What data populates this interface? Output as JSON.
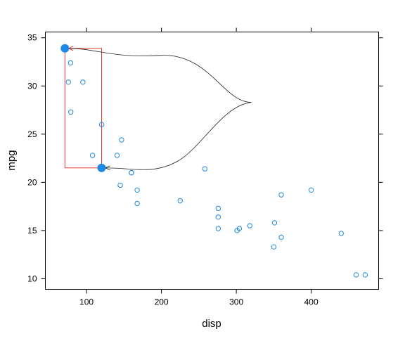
{
  "chart_data": {
    "type": "scatter",
    "title": "",
    "xlabel": "disp",
    "ylabel": "mpg",
    "xlim": [
      45,
      490
    ],
    "ylim": [
      8.9,
      35.6
    ],
    "x_ticks": [
      100,
      200,
      300,
      400
    ],
    "y_ticks": [
      10,
      15,
      20,
      25,
      30,
      35
    ],
    "grid": false,
    "point_color": "#1e88e5",
    "annotation_color": "#e53935",
    "points": [
      {
        "x": 71.1,
        "y": 33.9
      },
      {
        "x": 75.7,
        "y": 30.4
      },
      {
        "x": 78.7,
        "y": 32.4
      },
      {
        "x": 79.0,
        "y": 27.3
      },
      {
        "x": 95.1,
        "y": 30.4
      },
      {
        "x": 108.0,
        "y": 22.8
      },
      {
        "x": 120.1,
        "y": 21.5
      },
      {
        "x": 120.3,
        "y": 26.0
      },
      {
        "x": 140.8,
        "y": 22.8
      },
      {
        "x": 145.0,
        "y": 19.7
      },
      {
        "x": 146.7,
        "y": 24.4
      },
      {
        "x": 160.0,
        "y": 21.0
      },
      {
        "x": 160.0,
        "y": 21.0
      },
      {
        "x": 167.6,
        "y": 19.2
      },
      {
        "x": 167.6,
        "y": 17.8
      },
      {
        "x": 225.0,
        "y": 18.1
      },
      {
        "x": 258.0,
        "y": 21.4
      },
      {
        "x": 275.8,
        "y": 16.4
      },
      {
        "x": 275.8,
        "y": 17.3
      },
      {
        "x": 275.8,
        "y": 15.2
      },
      {
        "x": 301.0,
        "y": 15.0
      },
      {
        "x": 304.0,
        "y": 15.2
      },
      {
        "x": 318.0,
        "y": 15.5
      },
      {
        "x": 350.0,
        "y": 13.3
      },
      {
        "x": 351.0,
        "y": 15.8
      },
      {
        "x": 360.0,
        "y": 18.7
      },
      {
        "x": 360.0,
        "y": 14.3
      },
      {
        "x": 400.0,
        "y": 19.2
      },
      {
        "x": 440.0,
        "y": 14.7
      },
      {
        "x": 460.0,
        "y": 10.4
      },
      {
        "x": 472.0,
        "y": 10.4
      }
    ],
    "highlighted_points": [
      {
        "x": 71.1,
        "y": 33.9
      },
      {
        "x": 120.1,
        "y": 21.5
      }
    ],
    "selection_box": {
      "x_range": [
        71.1,
        120.1
      ],
      "y_range": [
        21.5,
        33.9
      ]
    },
    "connector_anchor": {
      "x": 320,
      "y": 28.3
    }
  }
}
